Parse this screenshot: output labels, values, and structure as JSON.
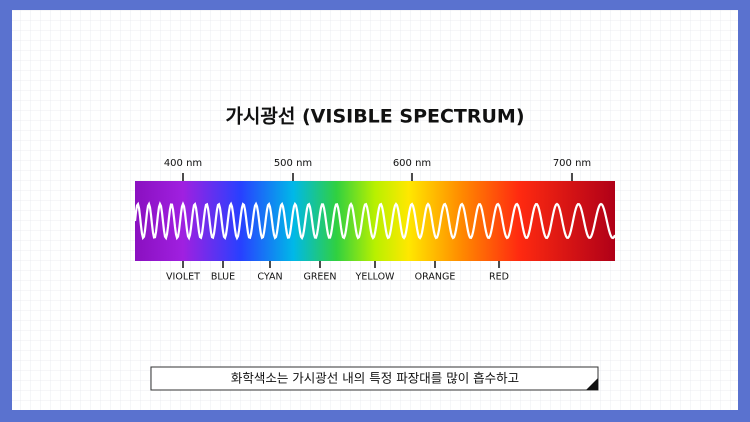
{
  "title": "가시광선 (VISIBLE SPECTRUM)",
  "wavelength_labels": [
    "400 nm",
    "500 nm",
    "600 nm",
    "700 nm"
  ],
  "color_labels": [
    "VIOLET",
    "BLUE",
    "CYAN",
    "GREEN",
    "YELLOW",
    "ORANGE",
    "RED"
  ],
  "caption": "화학색소는 가시광선 내의 특정 파장대를 많이 흡수하고"
}
